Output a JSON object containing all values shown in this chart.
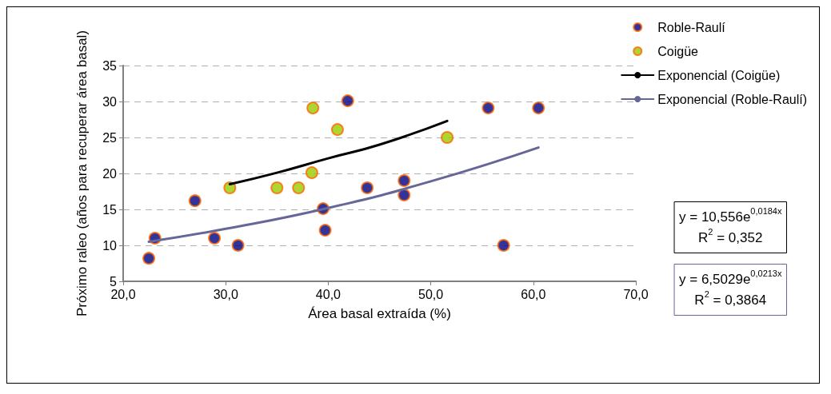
{
  "chart_data": {
    "type": "scatter",
    "xlabel": "Área basal extraída (%)",
    "ylabel": "Próximo raleo (años para recuperar área basal)",
    "xlim": [
      20,
      70
    ],
    "xticks": [
      {
        "value": 20,
        "label": "20,0"
      },
      {
        "value": 30,
        "label": "30,0"
      },
      {
        "value": 40,
        "label": "40,0"
      },
      {
        "value": 50,
        "label": "50,0"
      },
      {
        "value": 60,
        "label": "60,0"
      },
      {
        "value": 70,
        "label": "70,0"
      }
    ],
    "ylim": [
      5,
      35
    ],
    "yticks": [
      5,
      10,
      15,
      20,
      25,
      30,
      35
    ],
    "grid": "y",
    "legend": "right",
    "marker": "circle",
    "series": [
      {
        "name": "Roble-Raulí",
        "color": "#000080",
        "x": [
          22.5,
          23.1,
          27.0,
          28.9,
          31.2,
          39.5,
          39.7,
          41.9,
          43.8,
          47.4,
          47.4,
          55.6,
          57.1,
          60.5
        ],
        "values": [
          8.2,
          11,
          16.2,
          11,
          10,
          15.1,
          12.1,
          30.1,
          18,
          19,
          17,
          29.1,
          10,
          29.1
        ]
      },
      {
        "name": "Coigüe",
        "color": "#99cc00",
        "x": [
          30.4,
          35.0,
          37.1,
          38.4,
          38.5,
          40.9,
          51.6
        ],
        "values": [
          18,
          18,
          18,
          20.1,
          29.1,
          26.1,
          25.0
        ]
      },
      {
        "name": "Exponencial (Coigüe)",
        "type": "line",
        "marker": "none",
        "color": "#000000",
        "x": [
          30.4,
          35,
          40,
          45,
          51.6
        ],
        "values": [
          18.5,
          20.1,
          22.1,
          24.0,
          27.3
        ]
      },
      {
        "name": "Exponencial (Roble-Raulí)",
        "type": "line",
        "marker": "none",
        "color": "#666699",
        "x": [
          22.5,
          30,
          40,
          50,
          60.5
        ],
        "values": [
          10.5,
          12.3,
          15.2,
          18.9,
          23.6
        ]
      }
    ],
    "annotations": [
      "y = 10,556e$^{0,0184x}$\nR$^{2}$ = 0,352",
      "y = 6,5029e$^{0,0213x}$\nR$^{2}$ = 0,3864"
    ]
  }
}
